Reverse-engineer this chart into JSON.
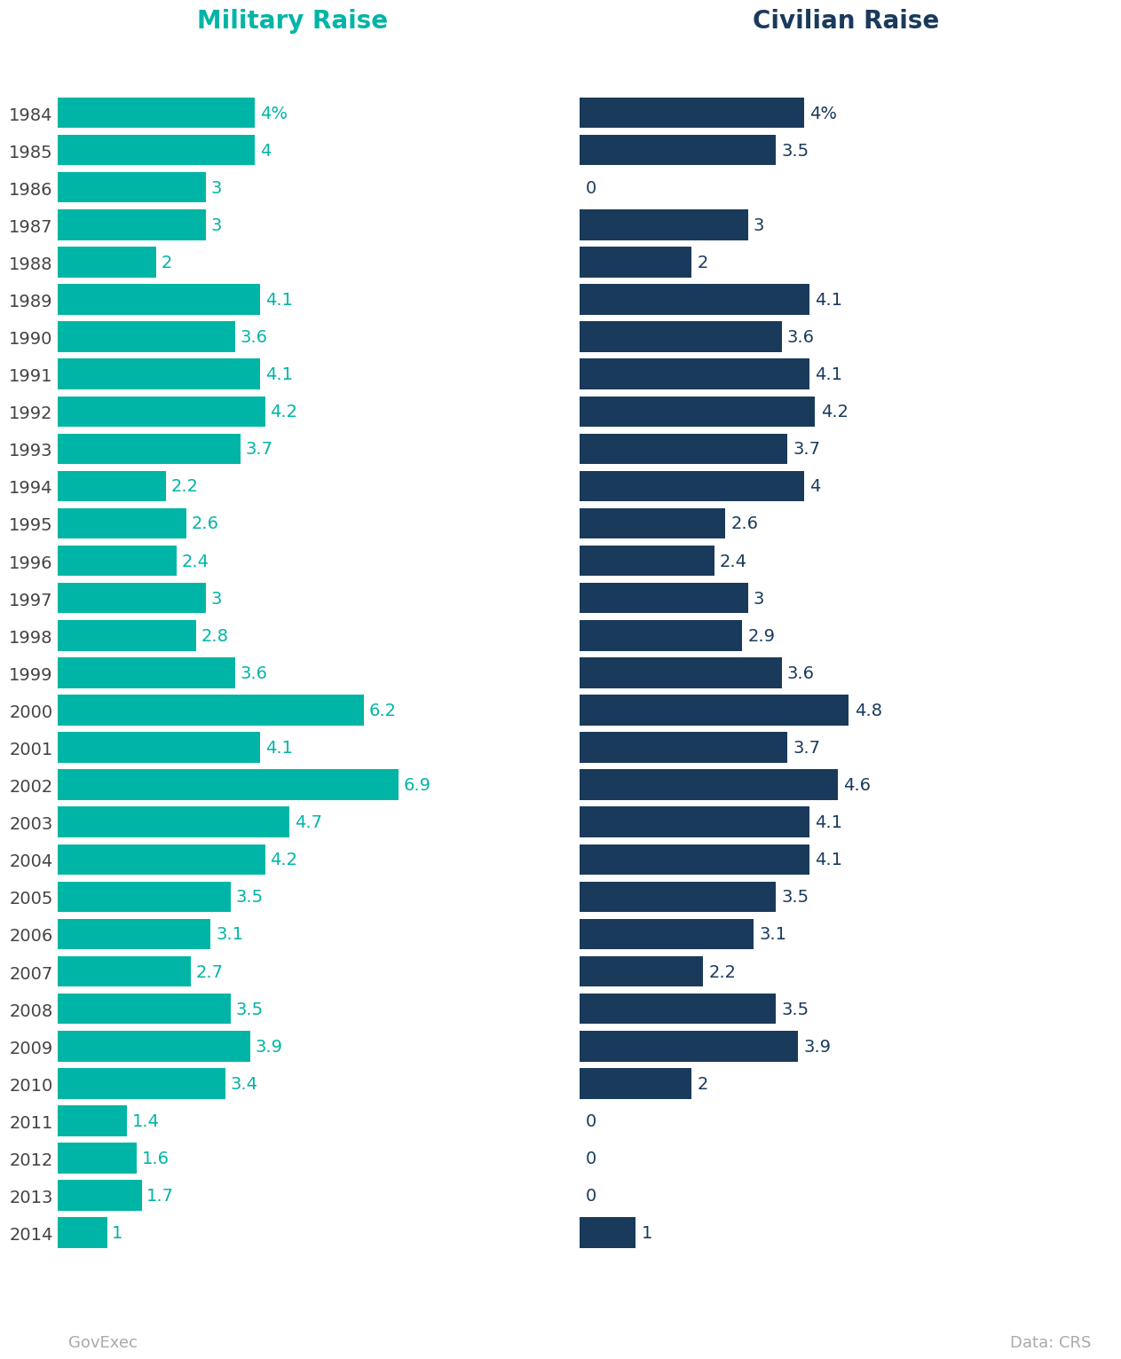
{
  "years": [
    1984,
    1985,
    1986,
    1987,
    1988,
    1989,
    1990,
    1991,
    1992,
    1993,
    1994,
    1995,
    1996,
    1997,
    1998,
    1999,
    2000,
    2001,
    2002,
    2003,
    2004,
    2005,
    2006,
    2007,
    2008,
    2009,
    2010,
    2011,
    2012,
    2013,
    2014
  ],
  "military": [
    4,
    4,
    3,
    3,
    2,
    4.1,
    3.6,
    4.1,
    4.2,
    3.7,
    2.2,
    2.6,
    2.4,
    3,
    2.8,
    3.6,
    6.2,
    4.1,
    6.9,
    4.7,
    4.2,
    3.5,
    3.1,
    2.7,
    3.5,
    3.9,
    3.4,
    1.4,
    1.6,
    1.7,
    1
  ],
  "civilian": [
    4,
    3.5,
    0,
    3,
    2,
    4.1,
    3.6,
    4.1,
    4.2,
    3.7,
    4,
    2.6,
    2.4,
    3,
    2.9,
    3.6,
    4.8,
    3.7,
    4.6,
    4.1,
    4.1,
    3.5,
    3.1,
    2.2,
    3.5,
    3.9,
    2,
    0,
    0,
    0,
    1
  ],
  "military_labels": [
    "4%",
    "4",
    "3",
    "3",
    "2",
    "4.1",
    "3.6",
    "4.1",
    "4.2",
    "3.7",
    "2.2",
    "2.6",
    "2.4",
    "3",
    "2.8",
    "3.6",
    "6.2",
    "4.1",
    "6.9",
    "4.7",
    "4.2",
    "3.5",
    "3.1",
    "2.7",
    "3.5",
    "3.9",
    "3.4",
    "1.4",
    "1.6",
    "1.7",
    "1"
  ],
  "civilian_labels": [
    "4%",
    "3.5",
    "0",
    "3",
    "2",
    "4.1",
    "3.6",
    "4.1",
    "4.2",
    "3.7",
    "4",
    "2.6",
    "2.4",
    "3",
    "2.9",
    "3.6",
    "4.8",
    "3.7",
    "4.6",
    "4.1",
    "4.1",
    "3.5",
    "3.1",
    "2.2",
    "3.5",
    "3.9",
    "2",
    "0",
    "0",
    "0",
    "1"
  ],
  "military_color": "#00b5a5",
  "civilian_color": "#1a3a5c",
  "military_title": "Military Raise",
  "civilian_title": "Civilian Raise",
  "military_title_color": "#00b5a5",
  "civilian_title_color": "#1a3a5c",
  "label_color_military": "#00b5a5",
  "label_color_civilian": "#1a3a5c",
  "year_label_color": "#444444",
  "footer_left": "GovExec",
  "footer_right": "Data: CRS",
  "footer_color": "#aaaaaa",
  "background_color": "#ffffff",
  "title_fontsize": 20,
  "bar_label_fontsize": 14,
  "year_fontsize": 14,
  "footer_fontsize": 13
}
